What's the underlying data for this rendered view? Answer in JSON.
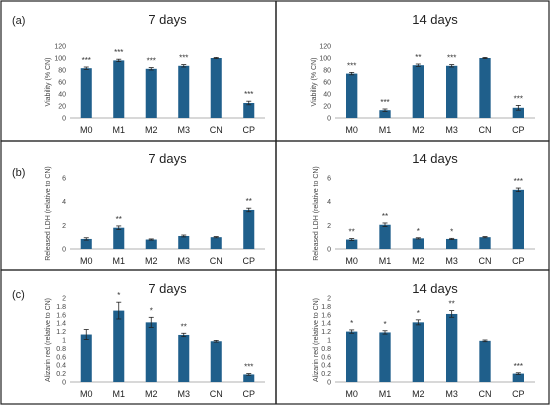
{
  "row_labels": [
    "(a)",
    "(b)",
    "(c)"
  ],
  "chart_data": [
    {
      "id": "a7",
      "type": "bar",
      "row": 0,
      "col": 0,
      "title": "7 days",
      "ylabel": "Viability (% CN)",
      "categories": [
        "M0",
        "M1",
        "M2",
        "M3",
        "CN",
        "CP"
      ],
      "values": [
        83,
        96,
        82,
        87,
        100,
        25
      ],
      "errors": [
        2,
        2,
        2,
        2,
        1,
        3
      ],
      "significance": [
        "***",
        "***",
        "***",
        "***",
        "",
        "***"
      ],
      "ylim": [
        0,
        120
      ],
      "yticks": [
        "0",
        "20",
        "40",
        "60",
        "80",
        "100",
        "120"
      ]
    },
    {
      "id": "a14",
      "type": "bar",
      "row": 0,
      "col": 1,
      "title": "14 days",
      "ylabel": "Viability (% CN)",
      "categories": [
        "M0",
        "M1",
        "M2",
        "M3",
        "CN",
        "CP"
      ],
      "values": [
        74,
        13,
        88,
        87,
        100,
        17
      ],
      "errors": [
        2,
        2,
        2,
        2,
        1,
        4
      ],
      "significance": [
        "***",
        "***",
        "**",
        "***",
        "",
        "***"
      ],
      "ylim": [
        0,
        120
      ],
      "yticks": [
        "0",
        "20",
        "40",
        "60",
        "80",
        "100",
        "120"
      ]
    },
    {
      "id": "b7",
      "type": "bar",
      "row": 1,
      "col": 0,
      "title": "7 days",
      "ylabel": "Released LDH (relative to CN)",
      "categories": [
        "M0",
        "M1",
        "M2",
        "M3",
        "CN",
        "CP"
      ],
      "values": [
        0.85,
        1.8,
        0.8,
        1.1,
        1.0,
        3.3
      ],
      "errors": [
        0.1,
        0.15,
        0.05,
        0.08,
        0.05,
        0.15
      ],
      "significance": [
        "",
        "**",
        "",
        "",
        "",
        "**"
      ],
      "ylim": [
        0,
        6
      ],
      "yticks": [
        "0",
        "2",
        "4",
        "6"
      ]
    },
    {
      "id": "b14",
      "type": "bar",
      "row": 1,
      "col": 1,
      "title": "14 days",
      "ylabel": "Released LDH (relative to CN)",
      "categories": [
        "M0",
        "M1",
        "M2",
        "M3",
        "CN",
        "CP"
      ],
      "values": [
        0.8,
        2.05,
        0.9,
        0.85,
        1.0,
        5.0
      ],
      "errors": [
        0.08,
        0.15,
        0.05,
        0.05,
        0.05,
        0.15
      ],
      "significance": [
        "**",
        "**",
        "*",
        "*",
        "",
        "***"
      ],
      "ylim": [
        0,
        6
      ],
      "yticks": [
        "0",
        "2",
        "4",
        "6"
      ]
    },
    {
      "id": "c7",
      "type": "bar",
      "row": 2,
      "col": 0,
      "title": "7 days",
      "ylabel": "Alizarin red (relative to CN)",
      "categories": [
        "M0",
        "M1",
        "M2",
        "M3",
        "CN",
        "CP"
      ],
      "values": [
        1.13,
        1.7,
        1.42,
        1.12,
        0.97,
        0.18
      ],
      "errors": [
        0.12,
        0.2,
        0.12,
        0.04,
        0.02,
        0.02
      ],
      "significance": [
        "",
        "*",
        "*",
        "**",
        "",
        "***"
      ],
      "ylim": [
        0,
        2
      ],
      "yticks": [
        "0",
        "0.2",
        "0.4",
        "0.6",
        "0.8",
        "1",
        "1.2",
        "1.4",
        "1.6",
        "1.8",
        "2"
      ]
    },
    {
      "id": "c14",
      "type": "bar",
      "row": 2,
      "col": 1,
      "title": "14 days",
      "ylabel": "Alizarin red (relative to CN)",
      "categories": [
        "M0",
        "M1",
        "M2",
        "M3",
        "CN",
        "CP"
      ],
      "values": [
        1.2,
        1.18,
        1.42,
        1.62,
        0.98,
        0.2
      ],
      "errors": [
        0.04,
        0.04,
        0.06,
        0.08,
        0.02,
        0.02
      ],
      "significance": [
        "*",
        "*",
        "*",
        "**",
        "",
        "***"
      ],
      "ylim": [
        0,
        2
      ],
      "yticks": [
        "0",
        "0.2",
        "0.4",
        "0.6",
        "0.8",
        "1",
        "1.2",
        "1.4",
        "1.6",
        "1.8",
        "2"
      ]
    }
  ]
}
